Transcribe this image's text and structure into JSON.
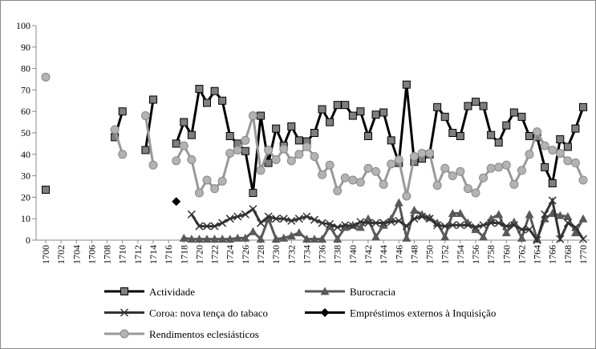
{
  "chart_data": {
    "type": "line",
    "x": [
      1700,
      1701,
      1702,
      1703,
      1704,
      1705,
      1706,
      1707,
      1708,
      1709,
      1710,
      1711,
      1712,
      1713,
      1714,
      1715,
      1716,
      1717,
      1718,
      1719,
      1720,
      1721,
      1722,
      1723,
      1724,
      1725,
      1726,
      1727,
      1728,
      1729,
      1730,
      1731,
      1732,
      1733,
      1734,
      1735,
      1736,
      1737,
      1738,
      1739,
      1740,
      1741,
      1742,
      1743,
      1744,
      1745,
      1746,
      1747,
      1748,
      1749,
      1750,
      1751,
      1752,
      1753,
      1754,
      1755,
      1756,
      1757,
      1758,
      1759,
      1760,
      1761,
      1762,
      1763,
      1764,
      1765,
      1766,
      1767,
      1768,
      1769,
      1770
    ],
    "xlim": [
      1700,
      1770
    ],
    "xticks": [
      1700,
      1702,
      1704,
      1706,
      1708,
      1710,
      1712,
      1714,
      1716,
      1718,
      1720,
      1722,
      1724,
      1726,
      1728,
      1730,
      1732,
      1734,
      1736,
      1738,
      1740,
      1742,
      1744,
      1746,
      1748,
      1750,
      1752,
      1754,
      1756,
      1758,
      1760,
      1762,
      1764,
      1766,
      1768,
      1770
    ],
    "ylim": [
      0,
      100
    ],
    "yticks": [
      0,
      10,
      20,
      30,
      40,
      50,
      60,
      70,
      80,
      90,
      100
    ],
    "grid": false,
    "legend": "bottom",
    "series": [
      {
        "name": "Actividade",
        "color": "#000000",
        "marker": "square",
        "marker_color": "#7f7f7f",
        "values": [
          23.5,
          null,
          null,
          null,
          null,
          null,
          null,
          null,
          null,
          48,
          60,
          null,
          null,
          42,
          65.5,
          null,
          null,
          45,
          55,
          49,
          70.5,
          64,
          69.5,
          65,
          48.5,
          45,
          41.5,
          22,
          58,
          36,
          52,
          44,
          53,
          46.5,
          46,
          50,
          61,
          55,
          63,
          63,
          58,
          60,
          48.5,
          58.5,
          59.5,
          46.5,
          36,
          72.5,
          36.5,
          38,
          40,
          62,
          57.5,
          50,
          48.5,
          62.5,
          64.5,
          62.5,
          49,
          45.5,
          53.5,
          59.5,
          57.5,
          48.5,
          48,
          34,
          26.5,
          47,
          43.5,
          52,
          62
        ]
      },
      {
        "name": "Burocracia",
        "color": "#595959",
        "marker": "triangle",
        "marker_color": "#595959",
        "values": [
          null,
          null,
          null,
          null,
          null,
          null,
          null,
          null,
          null,
          null,
          null,
          null,
          null,
          null,
          null,
          null,
          null,
          null,
          1,
          0.5,
          0.5,
          0.5,
          0.5,
          0.5,
          0.5,
          1,
          1,
          4,
          0.5,
          10,
          0.5,
          1,
          2,
          3.5,
          0.5,
          0.5,
          0.5,
          6.5,
          0.5,
          6,
          7,
          6,
          10,
          1.5,
          7,
          10,
          17.5,
          1,
          14,
          12,
          10.5,
          8,
          1.5,
          12.5,
          12.5,
          8,
          5,
          1.5,
          10,
          12,
          3.5,
          8.5,
          1,
          12,
          0.5,
          10,
          12.5,
          11.5,
          11,
          3.5,
          10
        ]
      },
      {
        "name": "Coroa: nova tença do tabaco",
        "color": "#333333",
        "marker": "x",
        "marker_color": "#333333",
        "values": [
          null,
          null,
          null,
          null,
          null,
          null,
          null,
          null,
          null,
          null,
          null,
          null,
          null,
          null,
          null,
          null,
          null,
          null,
          null,
          12,
          6.5,
          6.5,
          6.5,
          8,
          10,
          11,
          12,
          14.5,
          8,
          11,
          10,
          10,
          9,
          10,
          11,
          9.5,
          8,
          7.5,
          6,
          7,
          6.5,
          8.5,
          8,
          8,
          8,
          8.5,
          9,
          6.5,
          10,
          11,
          10,
          7,
          6.5,
          7,
          7,
          7,
          6,
          7,
          8,
          8,
          6.5,
          7,
          5,
          5,
          0,
          12,
          18.5,
          0.5,
          8,
          6,
          0.5
        ]
      },
      {
        "name": "Empréstimos externos à Inquisição",
        "color": "#000000",
        "marker": "diamond",
        "marker_color": "#000000",
        "values": [
          null,
          null,
          null,
          null,
          null,
          null,
          null,
          null,
          null,
          null,
          null,
          null,
          null,
          null,
          null,
          null,
          null,
          18,
          null,
          null,
          null,
          null,
          null,
          null,
          null,
          null,
          null,
          null,
          null,
          null,
          null,
          null,
          null,
          null,
          null,
          null,
          null,
          null,
          null,
          null,
          null,
          null,
          null,
          null,
          null,
          null,
          null,
          null,
          null,
          null,
          null,
          null,
          null,
          null,
          null,
          null,
          null,
          null,
          null,
          null,
          null,
          null,
          null,
          null,
          null,
          null,
          null,
          null,
          null,
          null,
          null
        ]
      },
      {
        "name": "Rendimentos eclesiásticos",
        "color": "#999999",
        "marker": "circle",
        "marker_color": "#b3b3b3",
        "values": [
          76,
          null,
          null,
          null,
          null,
          null,
          null,
          null,
          null,
          51.5,
          40,
          null,
          null,
          58,
          35,
          null,
          null,
          37,
          44,
          37.5,
          22,
          28,
          24,
          27.5,
          40.5,
          42,
          46.5,
          58,
          32.5,
          42,
          37.5,
          42.5,
          37,
          40,
          43.5,
          39,
          30.5,
          35,
          23,
          29,
          28,
          27,
          33.5,
          32,
          26,
          35.5,
          37.5,
          20.5,
          39,
          40.5,
          40.5,
          25.5,
          33.5,
          30,
          32,
          24,
          22,
          29,
          33.5,
          34,
          35,
          26,
          32.5,
          40,
          50.5,
          44,
          42,
          40.5,
          37,
          36,
          28
        ]
      }
    ]
  }
}
